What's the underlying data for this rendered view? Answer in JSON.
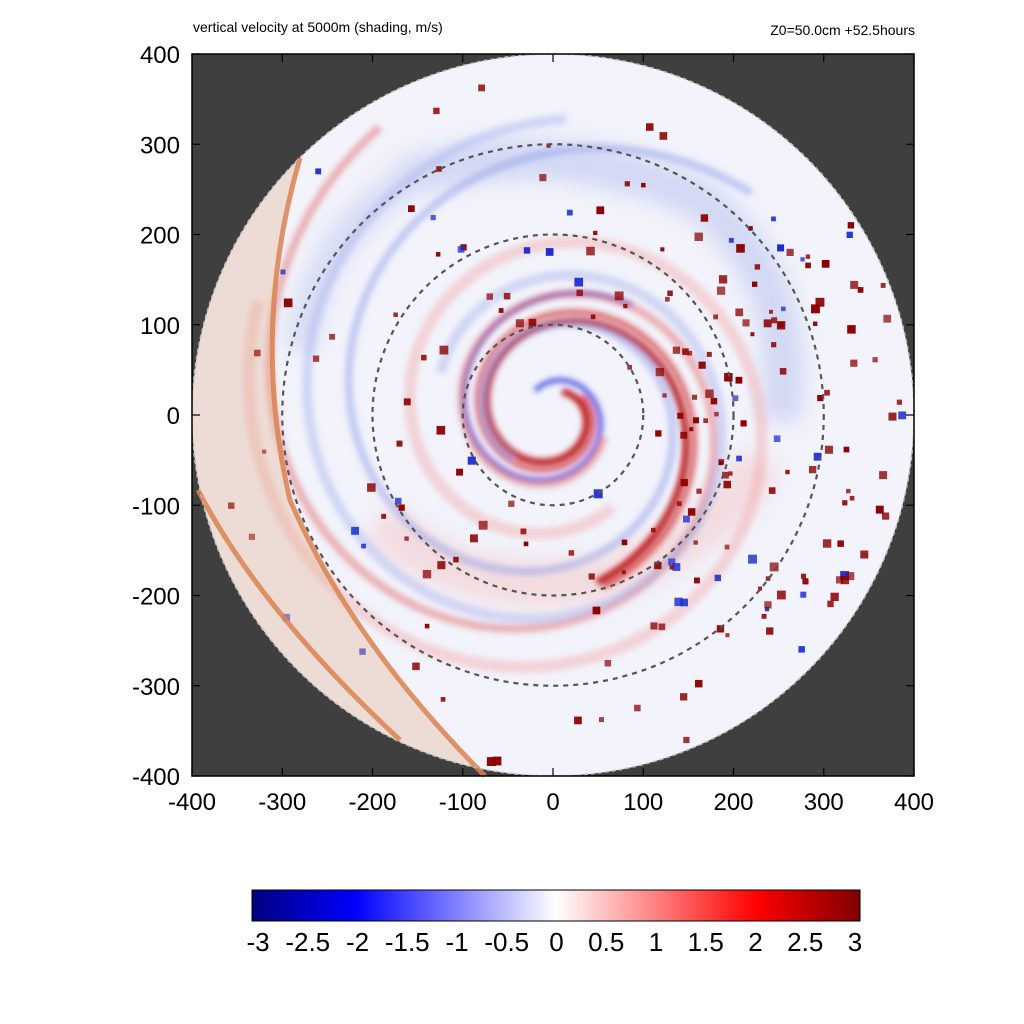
{
  "chart_data": {
    "type": "heatmap",
    "title": "vertical velocity at 5000m (shading, m/s)",
    "subtitle": "Z0=50.0cm  +52.5hours",
    "xlabel": "",
    "ylabel": "",
    "xlim": [
      -400,
      400
    ],
    "ylim": [
      -400,
      400
    ],
    "x_ticks": [
      -400,
      -300,
      -200,
      -100,
      0,
      100,
      200,
      300,
      400
    ],
    "y_ticks": [
      400,
      300,
      200,
      100,
      0,
      -100,
      -200,
      -300,
      -400
    ],
    "domain_radius": 400,
    "dashed_circle_radii": [
      100,
      200,
      300
    ],
    "colorbar": {
      "min": -3,
      "max": 3,
      "ticks": [
        "-3",
        "-2.5",
        "-2",
        "-1.5",
        "-1",
        "-0.5",
        "0",
        "0.5",
        "1",
        "1.5",
        "2",
        "2.5",
        "3"
      ],
      "colors": [
        "#00007f",
        "#0000ff",
        "#ffffff",
        "#ff0000",
        "#7f0000"
      ]
    },
    "background_color": "#3f3f3f",
    "rainband_color": "#7f0000",
    "downdraft_color": "#0000ff",
    "land_boundary_color": "#d9824f"
  }
}
